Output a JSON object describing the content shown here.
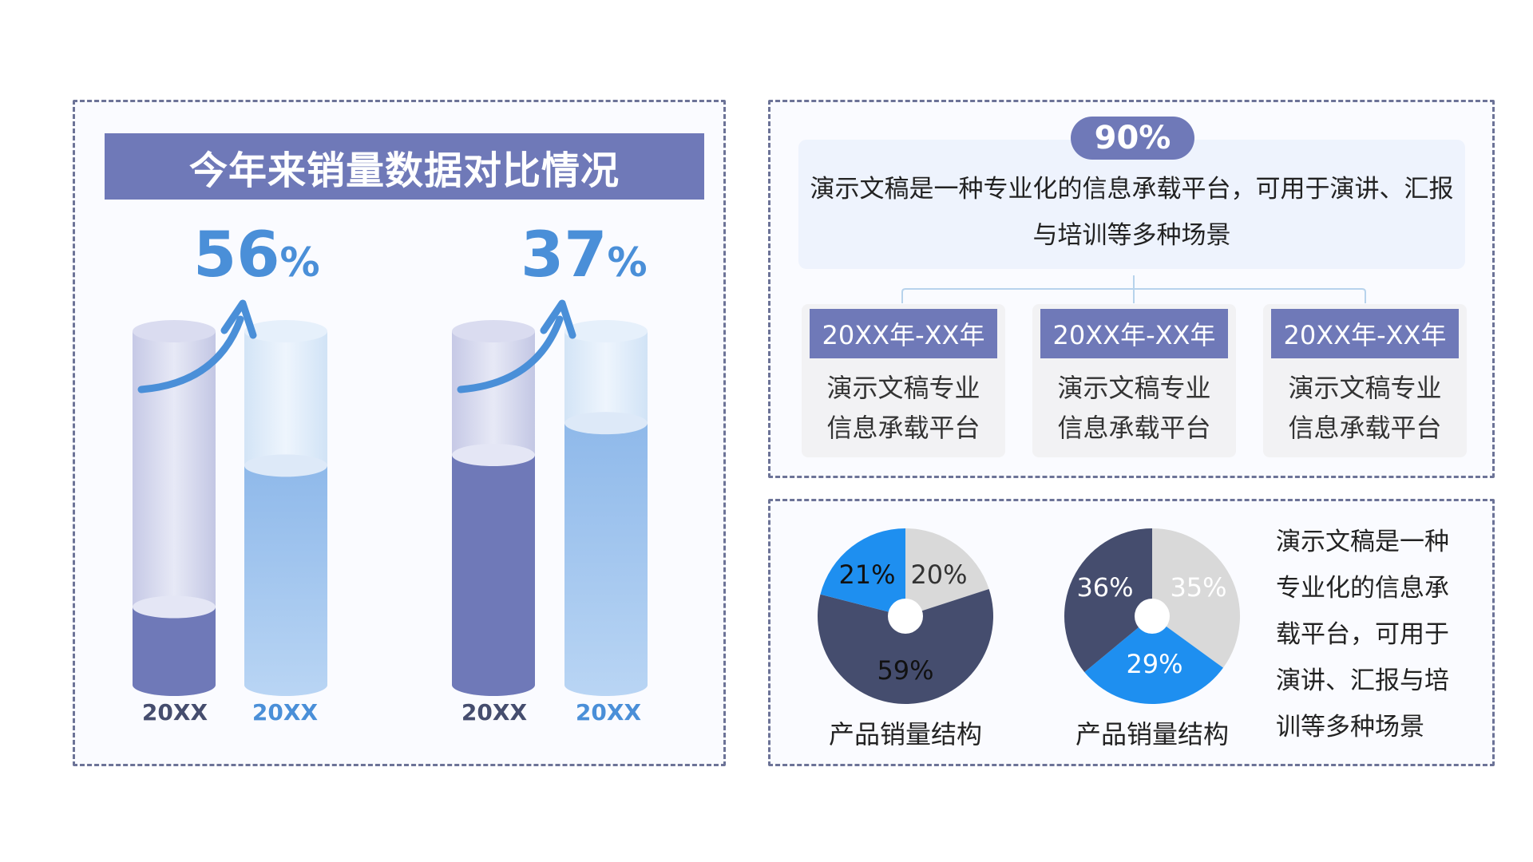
{
  "left": {
    "title": "今年来销量数据对比情况",
    "groups": [
      {
        "percent": "56",
        "unit": "%",
        "labels": [
          "20XX",
          "20XX"
        ]
      },
      {
        "percent": "37",
        "unit": "%",
        "labels": [
          "20XX",
          "20XX"
        ]
      }
    ]
  },
  "top_right": {
    "badge": "90%",
    "description": "演示文稿是一种专业化的信息承载平台，可用于演讲、汇报与培训等多种场景",
    "cards": [
      {
        "heading": "20XX年-XX年",
        "line1": "演示文稿专业",
        "line2": "信息承载平台"
      },
      {
        "heading": "20XX年-XX年",
        "line1": "演示文稿专业",
        "line2": "信息承载平台"
      },
      {
        "heading": "20XX年-XX年",
        "line1": "演示文稿专业",
        "line2": "信息承载平台"
      }
    ]
  },
  "bottom_right": {
    "captions": [
      "产品销量结构",
      "产品销量结构"
    ],
    "side_text": "演示文稿是一种专业化的信息承载平台，可用于演讲、汇报与培训等多种场景"
  },
  "colors": {
    "primary": "#6f79b8",
    "accent_blue": "#4a8fd8",
    "light_blue": "#9cc4ee",
    "dark_navy": "#454d6e",
    "bright_blue": "#1e8ff0",
    "light_gray": "#d9d9d9"
  },
  "chart_data": [
    {
      "type": "bar",
      "categories": [
        "20XX",
        "20XX",
        "20XX",
        "20XX"
      ],
      "fill_fraction": [
        0.22,
        0.62,
        0.65,
        0.74
      ],
      "annotations": [
        "56%",
        "37%"
      ]
    },
    {
      "type": "pie",
      "labels": [
        "20%",
        "59%",
        "21%"
      ],
      "values": [
        20,
        59,
        21
      ],
      "colors": [
        "#d9d9d9",
        "#454d6e",
        "#1e8ff0"
      ]
    },
    {
      "type": "pie",
      "labels": [
        "35%",
        "29%",
        "36%"
      ],
      "values": [
        35,
        29,
        36
      ],
      "colors": [
        "#d9d9d9",
        "#1e8ff0",
        "#454d6e"
      ]
    }
  ]
}
